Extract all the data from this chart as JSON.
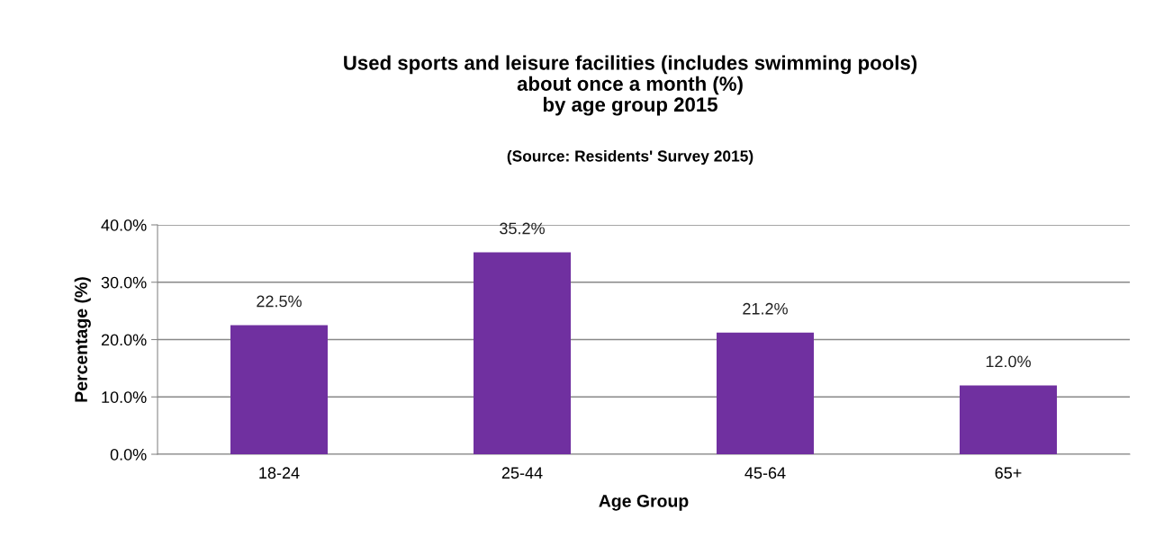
{
  "chart_data": {
    "type": "bar",
    "title": "Used sports and leisure facilities (includes swimming pools)\nabout once a month (%)\nby age group 2015",
    "subtitle": "(Source: Residents' Survey 2015)",
    "xlabel": "Age Group",
    "ylabel": "Percentage (%)",
    "categories": [
      "18-24",
      "25-44",
      "45-64",
      "65+"
    ],
    "values": [
      22.5,
      35.2,
      21.2,
      12.0
    ],
    "value_labels": [
      "22.5%",
      "35.2%",
      "21.2%",
      "12.0%"
    ],
    "color": "#7030a0",
    "ylim": [
      0,
      40
    ],
    "yticks": [
      {
        "value": 0,
        "label": "0.0%"
      },
      {
        "value": 10,
        "label": "10.0%"
      },
      {
        "value": 20,
        "label": "20.0%"
      },
      {
        "value": 30,
        "label": "30.0%"
      },
      {
        "value": 40,
        "label": "40.0%"
      }
    ],
    "grid": "y",
    "legend": false
  }
}
